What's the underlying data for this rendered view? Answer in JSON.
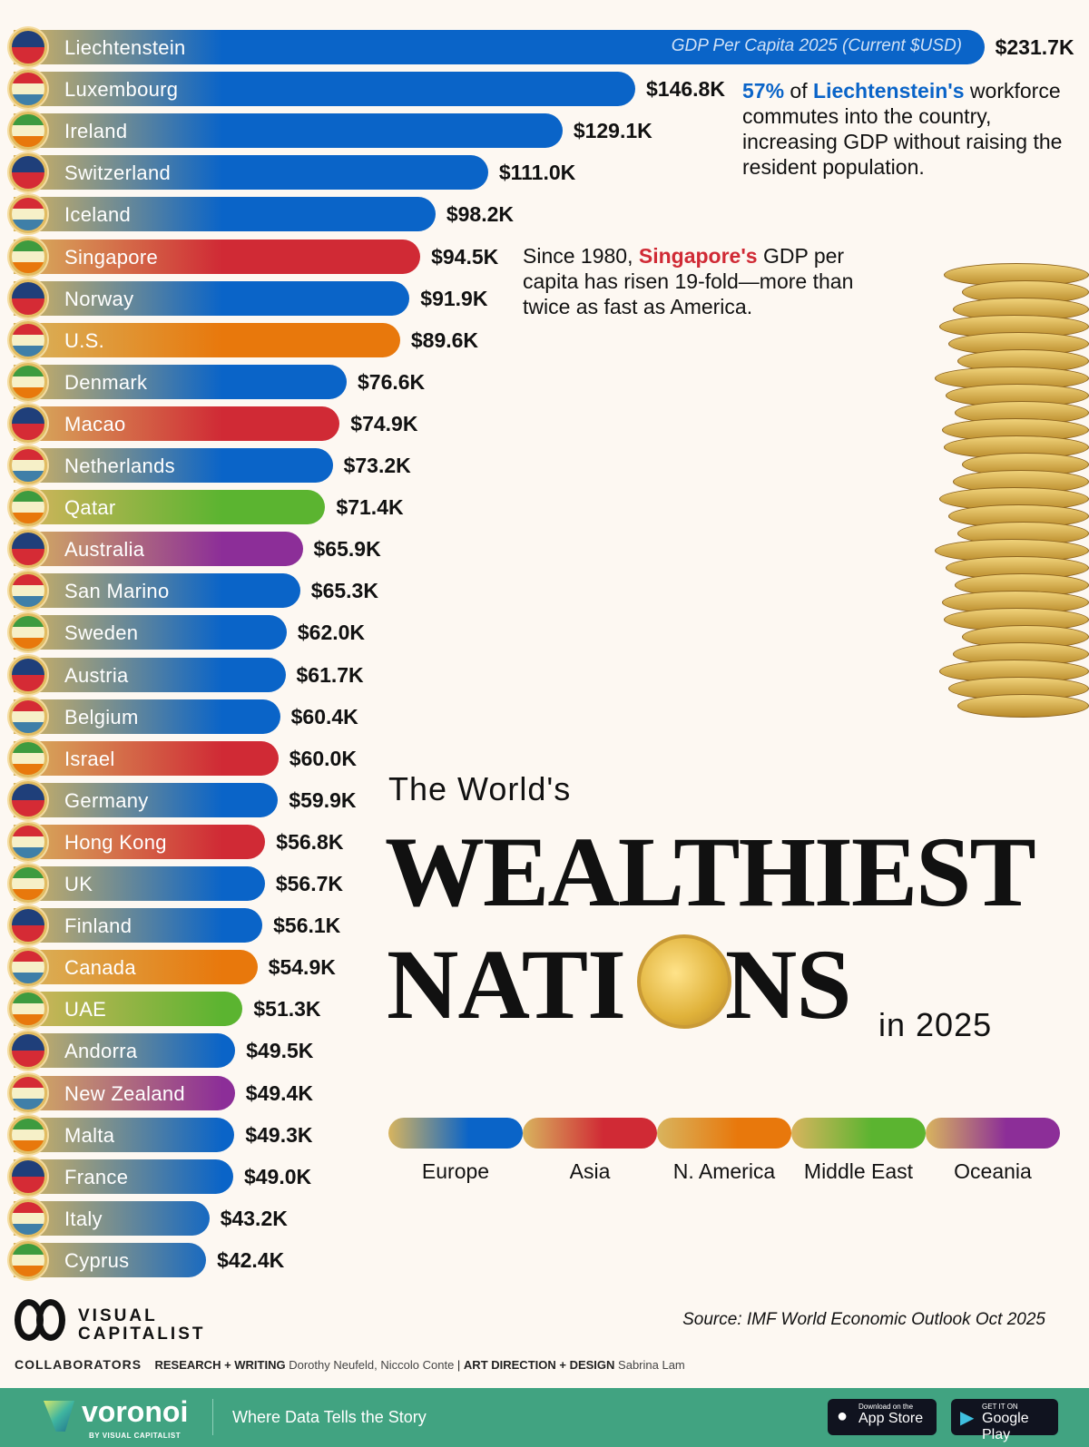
{
  "chart_data": {
    "type": "bar",
    "orientation": "horizontal",
    "subtitle": "GDP Per Capita 2025 (Current $USD)",
    "unit": "$K",
    "categories": [
      "Liechtenstein",
      "Luxembourg",
      "Ireland",
      "Switzerland",
      "Iceland",
      "Singapore",
      "Norway",
      "U.S.",
      "Denmark",
      "Macao",
      "Netherlands",
      "Qatar",
      "Australia",
      "San Marino",
      "Sweden",
      "Austria",
      "Belgium",
      "Israel",
      "Germany",
      "Hong Kong",
      "UK",
      "Finland",
      "Canada",
      "UAE",
      "Andorra",
      "New Zealand",
      "Malta",
      "France",
      "Italy",
      "Cyprus"
    ],
    "values": [
      231.7,
      146.8,
      129.1,
      111.0,
      98.2,
      94.5,
      91.9,
      89.6,
      76.6,
      74.9,
      73.2,
      71.4,
      65.9,
      65.3,
      62.0,
      61.7,
      60.4,
      60.0,
      59.9,
      56.8,
      56.7,
      56.1,
      54.9,
      51.3,
      49.5,
      49.4,
      49.3,
      49.0,
      43.2,
      42.4
    ],
    "labels": [
      "$231.7K",
      "$146.8K",
      "$129.1K",
      "$111.0K",
      "$98.2K",
      "$94.5K",
      "$91.9K",
      "$89.6K",
      "$76.6K",
      "$74.9K",
      "$73.2K",
      "$71.4K",
      "$65.9K",
      "$65.3K",
      "$62.0K",
      "$61.7K",
      "$60.4K",
      "$60.0K",
      "$59.9K",
      "$56.8K",
      "$56.7K",
      "$56.1K",
      "$54.9K",
      "$51.3K",
      "$49.5K",
      "$49.4K",
      "$49.3K",
      "$49.0K",
      "$43.2K",
      "$42.4K"
    ],
    "regions": [
      "Europe",
      "Europe",
      "Europe",
      "Europe",
      "Europe",
      "Asia",
      "Europe",
      "N. America",
      "Europe",
      "Asia",
      "Europe",
      "Middle East",
      "Oceania",
      "Europe",
      "Europe",
      "Europe",
      "Europe",
      "Asia",
      "Europe",
      "Asia",
      "Europe",
      "Europe",
      "N. America",
      "Middle East",
      "Europe",
      "Oceania",
      "Europe",
      "Europe",
      "Europe",
      "Europe"
    ],
    "legend": [
      {
        "name": "Europe",
        "color": "#0a64c8"
      },
      {
        "name": "Asia",
        "color": "#d02a35"
      },
      {
        "name": "N. America",
        "color": "#e8780c"
      },
      {
        "name": "Middle East",
        "color": "#5bb430"
      },
      {
        "name": "Oceania",
        "color": "#8c2e98"
      }
    ],
    "xlim": [
      0,
      231.7
    ],
    "grid": false
  },
  "notes": {
    "liechtenstein": {
      "pct": "57%",
      "of": " of ",
      "country": "Liechtenstein's",
      "rest": " workforce commutes into the country, increasing GDP without raising the resident population."
    },
    "singapore": {
      "pre": "Since 1980, ",
      "country": "Singapore's",
      "rest": " GDP per capita has risen 19-fold—more than twice as fast as America."
    }
  },
  "title": {
    "line1": "The World's",
    "line2": "WEALTHIEST",
    "line3a": "NATI",
    "line3b": "NS",
    "line4": "in 2025"
  },
  "source": "Source: IMF World Economic Outlook Oct 2025",
  "logo": "VISUAL CAPITALIST",
  "collaborators": {
    "label": "COLLABORATORS",
    "research_label": "RESEARCH + WRITING",
    "research": "Dorothy Neufeld, Niccolo Conte",
    "art_label": "ART DIRECTION + DESIGN",
    "art": "Sabrina Lam"
  },
  "footer": {
    "brand": "voronoi",
    "by": "BY VISUAL CAPITALIST",
    "tagline": "Where Data Tells the Story",
    "appstore": "App Store",
    "appstore_small": "Download on the",
    "googleplay": "Google Play",
    "googleplay_small": "GET IT ON"
  },
  "colors": {
    "background": "#fdf8f2",
    "footer": "#41a381",
    "gold": "#e2bc62"
  }
}
